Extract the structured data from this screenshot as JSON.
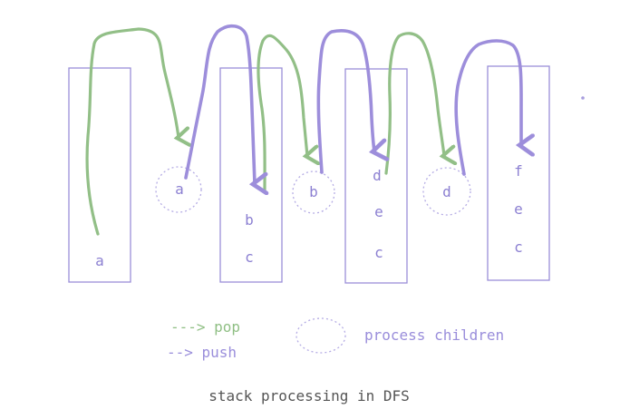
{
  "stacks": [
    {
      "items": [
        "a"
      ]
    },
    {
      "items": [
        "b",
        "c"
      ]
    },
    {
      "items": [
        "d",
        "e",
        "c"
      ]
    },
    {
      "items": [
        "f",
        "e",
        "c"
      ]
    }
  ],
  "processed": [
    "a",
    "b",
    "d"
  ],
  "legend": {
    "pop": "---> pop",
    "push": "--> push",
    "process": "process children"
  },
  "caption": "stack processing in DFS",
  "colors": {
    "push": "#9d8edb",
    "pop": "#92bf87",
    "stack_border": "#9a8fd8",
    "text": "#8c80d2"
  }
}
